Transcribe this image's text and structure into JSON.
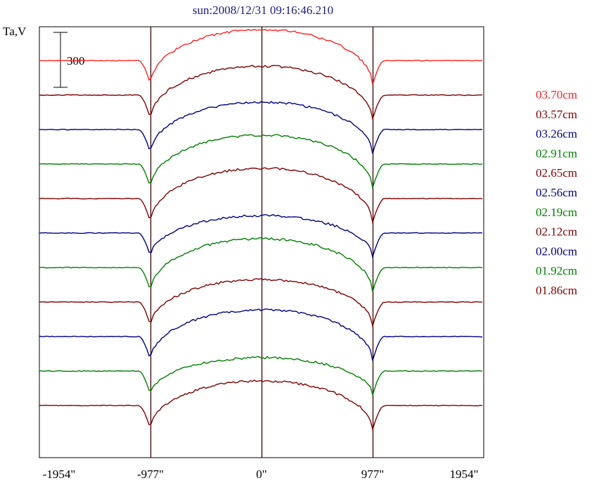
{
  "chart_data": {
    "type": "line",
    "title": "sun:2008/12/31 09:16:46.210",
    "ylabel": "Ta,V",
    "scale_bar_label": "300",
    "xlim": [
      -1954,
      1954
    ],
    "x_ticks": [
      {
        "value": -1954,
        "label": "-1954\""
      },
      {
        "value": -977,
        "label": "-977\""
      },
      {
        "value": 0,
        "label": "0\""
      },
      {
        "value": 977,
        "label": "977\""
      },
      {
        "value": 1954,
        "label": "1954\""
      }
    ],
    "vertical_markers": [
      -977,
      0,
      977
    ],
    "series": [
      {
        "name": "03.70cm",
        "color": "#ff2020",
        "bright": 78
      },
      {
        "name": "03.57cm",
        "color": "#800000",
        "bright": 75
      },
      {
        "name": "03.26cm",
        "color": "#000080",
        "bright": 73
      },
      {
        "name": "02.91cm",
        "color": "#008000",
        "bright": 75
      },
      {
        "name": "02.65cm",
        "color": "#800000",
        "bright": 77
      },
      {
        "name": "02.56cm",
        "color": "#000080",
        "bright": 59
      },
      {
        "name": "02.19cm",
        "color": "#008000",
        "bright": 75
      },
      {
        "name": "02.12cm",
        "color": "#800000",
        "bright": 66
      },
      {
        "name": "02.00cm",
        "color": "#000080",
        "bright": 72
      },
      {
        "name": "01.92cm",
        "color": "#008000",
        "bright": 53
      },
      {
        "name": "01.86cm",
        "color": "#800000",
        "bright": 69
      }
    ]
  }
}
